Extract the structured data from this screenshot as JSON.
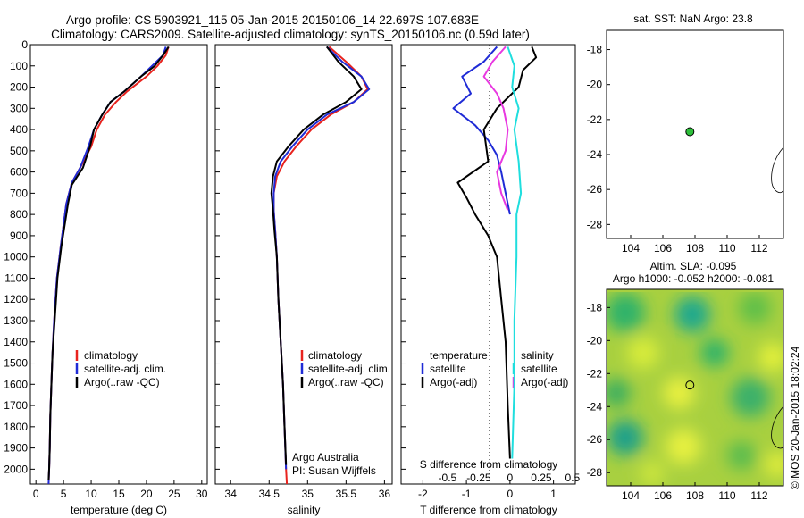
{
  "header": {
    "title_line1": "Argo profile: CS 5903921_115 05-Jan-2015 20150106_14 22.697S 107.683E",
    "title_line2": "Climatology: CARS2009. Satellite-adjusted climatology: synTS_20150106.nc (0.59d later)"
  },
  "colors": {
    "climatology": "#e8231e",
    "satellite": "#1f2bd6",
    "argo": "#000000",
    "sal_satellite": "#1fdede",
    "sal_argo": "#e838e0",
    "marker": "#2dbf3a"
  },
  "chart_data": [
    {
      "type": "line",
      "panel": "temperature",
      "xlabel": "temperature (deg C)",
      "xlim": [
        -1,
        31
      ],
      "xticks": [
        0,
        5,
        10,
        15,
        20,
        25,
        30
      ],
      "ylim": [
        2070,
        0
      ],
      "yticks": [
        0,
        100,
        200,
        300,
        400,
        500,
        600,
        700,
        800,
        900,
        1000,
        1100,
        1200,
        1300,
        1400,
        1500,
        1600,
        1700,
        1800,
        1900,
        2000
      ],
      "legend": [
        "climatology",
        "satellite-adj. clim.",
        "Argo(..raw -QC)"
      ],
      "series": [
        {
          "name": "climatology",
          "color": "#e8231e",
          "x": [
            24.0,
            23.5,
            22.0,
            20.0,
            16.5,
            14.5,
            12.5,
            11.0,
            10.0,
            8.0,
            6.5,
            5.5,
            5.0,
            4.5,
            3.8,
            3.3,
            3.0,
            2.8,
            2.6,
            2.5,
            2.4,
            2.3
          ],
          "y": [
            10,
            50,
            100,
            150,
            220,
            270,
            330,
            400,
            480,
            580,
            650,
            750,
            850,
            950,
            1100,
            1300,
            1450,
            1600,
            1750,
            1900,
            2000,
            2070
          ]
        },
        {
          "name": "satellite-adj. clim.",
          "color": "#1f2bd6",
          "x": [
            23.5,
            23.0,
            21.0,
            19.0,
            16.0,
            13.5,
            12.0,
            10.5,
            9.5,
            8.0,
            6.5,
            5.5,
            5.0,
            4.5,
            3.8,
            3.3,
            3.0,
            2.8,
            2.6,
            2.5,
            2.4,
            2.3
          ],
          "y": [
            10,
            50,
            100,
            150,
            220,
            270,
            330,
            400,
            480,
            580,
            650,
            750,
            850,
            950,
            1100,
            1300,
            1450,
            1600,
            1750,
            1900,
            2000,
            2070
          ]
        },
        {
          "name": "Argo(..raw -QC)",
          "color": "#000000",
          "x": [
            24.0,
            23.0,
            21.5,
            19.0,
            16.0,
            13.5,
            12.0,
            10.5,
            9.8,
            8.5,
            6.5,
            5.8,
            5.2,
            4.6,
            3.9,
            3.4,
            3.0,
            2.8,
            2.6,
            2.5,
            2.4,
            2.3
          ],
          "y": [
            10,
            50,
            100,
            150,
            220,
            270,
            330,
            400,
            480,
            580,
            660,
            750,
            850,
            950,
            1100,
            1300,
            1450,
            1600,
            1750,
            1900,
            2000,
            2050
          ]
        }
      ]
    },
    {
      "type": "line",
      "panel": "salinity",
      "xlabel": "salinity",
      "xlim": [
        33.8,
        36.1
      ],
      "xticks": [
        34,
        34.5,
        35,
        35.5,
        36
      ],
      "ylim": [
        2070,
        0
      ],
      "legend": [
        "climatology",
        "satellite-adj. clim.",
        "Argo(..raw -QC)"
      ],
      "annotation": [
        "Argo Australia",
        "PI: Susan Wijffels"
      ],
      "series": [
        {
          "name": "climatology",
          "color": "#e8231e",
          "x": [
            35.28,
            35.5,
            35.7,
            35.78,
            35.6,
            35.3,
            35.05,
            34.85,
            34.7,
            34.6,
            34.56,
            34.56,
            34.58,
            34.6,
            34.62,
            34.65,
            34.68,
            34.7,
            34.72,
            34.73
          ],
          "y": [
            10,
            80,
            150,
            210,
            270,
            330,
            400,
            480,
            550,
            620,
            700,
            780,
            880,
            1000,
            1200,
            1400,
            1600,
            1800,
            2000,
            2070
          ]
        },
        {
          "name": "satellite-adj. clim.",
          "color": "#1f2bd6",
          "x": [
            35.25,
            35.45,
            35.7,
            35.8,
            35.6,
            35.25,
            35.0,
            34.8,
            34.65,
            34.58,
            34.56,
            34.56,
            34.58,
            34.6,
            34.62,
            34.65,
            34.68,
            34.7,
            34.72
          ],
          "y": [
            10,
            80,
            150,
            210,
            270,
            330,
            400,
            480,
            550,
            620,
            700,
            780,
            880,
            1000,
            1200,
            1400,
            1600,
            1800,
            2000
          ]
        },
        {
          "name": "Argo(..raw -QC)",
          "color": "#000000",
          "x": [
            35.25,
            35.4,
            35.6,
            35.7,
            35.5,
            35.2,
            34.95,
            34.75,
            34.6,
            34.55,
            34.53,
            34.55,
            34.57,
            34.6,
            34.62,
            34.65,
            34.68,
            34.7,
            34.72
          ],
          "y": [
            10,
            80,
            150,
            210,
            270,
            330,
            400,
            480,
            550,
            620,
            700,
            780,
            880,
            1000,
            1200,
            1400,
            1600,
            1800,
            1980
          ]
        }
      ]
    },
    {
      "type": "line",
      "panel": "difference",
      "xlabel": "T difference from climatology",
      "xlabel_top": "S difference from climatology",
      "xlim": [
        -2.5,
        1.5
      ],
      "xticks": [
        -2,
        -1,
        0,
        1
      ],
      "xticks_top": [
        "-0.5",
        "-0.25",
        "0",
        "0.25",
        "0.5"
      ],
      "ylim": [
        2070,
        0
      ],
      "legend": {
        "left_header": "temperature",
        "right_header": "salinity",
        "left": [
          "satellite",
          "Argo(-adj)"
        ],
        "right": [
          "satellite",
          "Argo(-adj)"
        ]
      },
      "series": [
        {
          "name": "temperature satellite",
          "color": "#1f2bd6",
          "x": [
            -0.3,
            -0.6,
            -1.1,
            -0.9,
            -1.3,
            -0.8,
            -0.5,
            -0.3,
            -0.2,
            -0.1,
            0
          ],
          "y": [
            10,
            80,
            150,
            230,
            300,
            380,
            450,
            520,
            600,
            700,
            800
          ]
        },
        {
          "name": "temperature Argo(-adj)",
          "color": "#000000",
          "x": [
            0.5,
            0.6,
            0.3,
            0.2,
            -0.3,
            -0.6,
            -0.5,
            -1.2,
            -1.0,
            -0.8,
            -0.5,
            -0.3,
            -0.2,
            -0.1,
            -0.05,
            0
          ],
          "y": [
            10,
            60,
            120,
            200,
            300,
            400,
            550,
            650,
            720,
            800,
            900,
            1000,
            1200,
            1400,
            1700,
            1950
          ]
        },
        {
          "name": "salinity satellite",
          "color": "#1fdede",
          "x": [
            -0.05,
            0.1,
            0.05,
            0.2,
            0.1,
            0.2,
            0.25,
            0.15,
            0.15,
            0.1,
            0.1,
            0.05
          ],
          "y": [
            10,
            100,
            200,
            300,
            400,
            550,
            700,
            800,
            1000,
            1300,
            1600,
            1950
          ]
        },
        {
          "name": "salinity Argo(-adj)",
          "color": "#e838e0",
          "x": [
            -0.1,
            -0.4,
            -0.6,
            -0.3,
            -0.15,
            -0.05,
            -0.1,
            -0.3,
            -0.2,
            -0.05
          ],
          "y": [
            10,
            80,
            150,
            230,
            300,
            400,
            500,
            600,
            700,
            780
          ]
        }
      ]
    },
    {
      "type": "scatter",
      "panel": "sst-map",
      "title": "sat. SST: NaN Argo: 23.8",
      "xlim": [
        102.5,
        113.5
      ],
      "ylim": [
        -28.8,
        -16.9
      ],
      "xticks": [
        104,
        106,
        108,
        110,
        112
      ],
      "yticks": [
        -18,
        -20,
        -22,
        -24,
        -26,
        -28
      ],
      "point": {
        "lon": 107.683,
        "lat": -22.697
      }
    },
    {
      "type": "heatmap",
      "panel": "sla-map",
      "title_line1": "Altim. SLA: -0.095",
      "title_line2": "Argo h1000: -0.052 h2000: -0.081",
      "xlim": [
        102.5,
        113.5
      ],
      "ylim": [
        -28.8,
        -16.9
      ],
      "xticks": [
        104,
        106,
        108,
        110,
        112
      ],
      "yticks": [
        -18,
        -20,
        -22,
        -24,
        -26,
        -28
      ],
      "point": {
        "lon": 107.683,
        "lat": -22.697
      }
    }
  ],
  "footer": {
    "stamp": "©IMOS 20-Jan-2015 18:02:24"
  }
}
